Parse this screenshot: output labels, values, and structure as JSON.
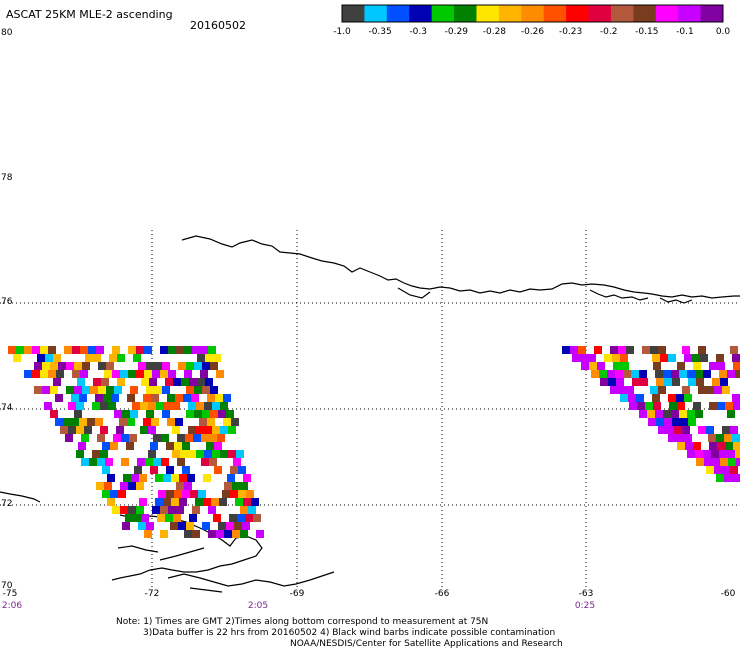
{
  "header": {
    "title": "ASCAT 25KM MLE-2 ascending",
    "date": "20160502"
  },
  "colorbar": {
    "colors": [
      "#404040",
      "#00c8ff",
      "#0050ff",
      "#0000b4",
      "#00c800",
      "#008000",
      "#ffe600",
      "#ffb400",
      "#ff8c00",
      "#ff5000",
      "#ff0000",
      "#e00040",
      "#b45a3c",
      "#7a3c1e",
      "#ff00ff",
      "#c800ff",
      "#8000a0"
    ],
    "labels": [
      "-1.0",
      "-0.35",
      "-0.3",
      "-0.29",
      "-0.28",
      "-0.26",
      "-0.23",
      "-0.2",
      "-0.15",
      "-0.1",
      "0.0"
    ]
  },
  "axes": {
    "lat_labels": [
      "80",
      "78",
      "76",
      "74",
      "72",
      "70"
    ],
    "lon_labels": [
      "-75",
      "-72",
      "-69",
      "-66",
      "-63",
      "-60"
    ],
    "time_labels": [
      "2:06",
      "2:05",
      "0:25"
    ]
  },
  "notes": {
    "line1": "Note: 1) Times are GMT 2)Times along bottom correspond to measurement at 75N",
    "line2": "3)Data buffer is 22 hrs from 20160502 4) Black wind barbs indicate possible contamination",
    "line3": "NOAA/NESDIS/Center for Satellite Applications and Research"
  }
}
